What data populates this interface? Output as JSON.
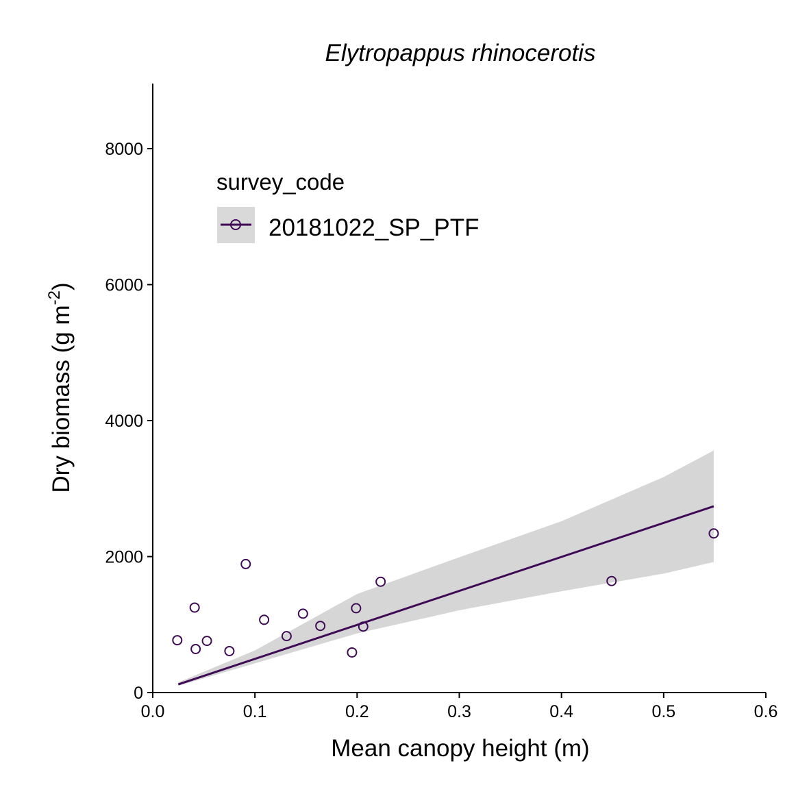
{
  "chart_data": {
    "type": "scatter",
    "title": "Elytropappus rhinocerotis",
    "xlabel": "Mean canopy height (m)",
    "ylabel": {
      "main": "Dry biomass (g m",
      "superscript": "-2",
      "close": ")"
    },
    "xlim": [
      0.0,
      0.6
    ],
    "ylim": [
      0,
      9000
    ],
    "x_ticks": [
      0.0,
      0.1,
      0.2,
      0.3,
      0.4,
      0.5,
      0.6
    ],
    "x_tick_labels": [
      "0.0",
      "0.1",
      "0.2",
      "0.3",
      "0.4",
      "0.5",
      "0.6"
    ],
    "y_ticks": [
      0,
      2000,
      4000,
      6000,
      8000
    ],
    "y_tick_labels": [
      "0",
      "2000",
      "4000",
      "6000",
      "8000"
    ],
    "grid": false,
    "legend": {
      "title": "survey_code",
      "position": "top-left",
      "entries": [
        "20181022_SP_PTF"
      ]
    },
    "series": [
      {
        "name": "20181022_SP_PTF",
        "color": "#3f0a55",
        "points": [
          {
            "x": 0.024,
            "y": 770
          },
          {
            "x": 0.041,
            "y": 1250
          },
          {
            "x": 0.042,
            "y": 640
          },
          {
            "x": 0.053,
            "y": 760
          },
          {
            "x": 0.075,
            "y": 610
          },
          {
            "x": 0.091,
            "y": 1890
          },
          {
            "x": 0.109,
            "y": 1070
          },
          {
            "x": 0.131,
            "y": 830
          },
          {
            "x": 0.147,
            "y": 1160
          },
          {
            "x": 0.164,
            "y": 980
          },
          {
            "x": 0.195,
            "y": 590
          },
          {
            "x": 0.199,
            "y": 1240
          },
          {
            "x": 0.206,
            "y": 970
          },
          {
            "x": 0.223,
            "y": 1630
          },
          {
            "x": 0.449,
            "y": 1640
          },
          {
            "x": 0.549,
            "y": 2340
          }
        ],
        "fit": {
          "x": [
            0.025,
            0.549
          ],
          "y": [
            120,
            2740
          ]
        },
        "ci_band": {
          "x": [
            0.025,
            0.1,
            0.2,
            0.3,
            0.4,
            0.5,
            0.549
          ],
          "lower": [
            100,
            430,
            870,
            1210,
            1490,
            1750,
            1920
          ],
          "upper": [
            150,
            620,
            1450,
            1990,
            2520,
            3170,
            3560
          ]
        }
      }
    ],
    "colors": {
      "series": "#3f0a55",
      "ci_band": "#d6d6d6",
      "legend_key_bg": "#d9d9d9",
      "axis": "#000000"
    }
  }
}
